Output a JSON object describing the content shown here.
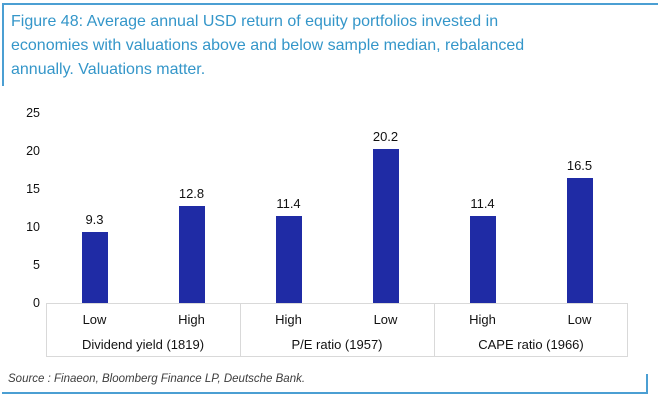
{
  "figure": {
    "title_lines": [
      "Figure 48: Average annual USD return of equity portfolios invested in",
      "economies with valuations above and below sample median, rebalanced",
      "annually. Valuations matter."
    ],
    "source": "Source : Finaeon, Bloomberg Finance LP, Deutsche Bank."
  },
  "colors": {
    "bar": "#1f2ba5",
    "title_blue": "#3496c9",
    "border_blue": "#4b9fd3",
    "grid_gray": "#d9d9d9"
  },
  "chart_data": {
    "type": "bar",
    "title": "Figure 48: Average annual USD return of equity portfolios invested in economies with valuations above and below sample median, rebalanced annually. Valuations matter.",
    "xlabel": "",
    "ylabel": "",
    "ylim": [
      0,
      25
    ],
    "yticks": [
      0,
      5,
      10,
      15,
      20,
      25
    ],
    "grid": false,
    "legend": false,
    "bar_color": "#1f2ba5",
    "groups": [
      {
        "label": "Dividend yield (1819)",
        "bars": [
          {
            "category": "Low",
            "value": 9.3
          },
          {
            "category": "High",
            "value": 12.8
          }
        ]
      },
      {
        "label": "P/E ratio (1957)",
        "bars": [
          {
            "category": "High",
            "value": 11.4
          },
          {
            "category": "Low",
            "value": 20.2
          }
        ]
      },
      {
        "label": "CAPE ratio (1966)",
        "bars": [
          {
            "category": "High",
            "value": 11.4
          },
          {
            "category": "Low",
            "value": 16.5
          }
        ]
      }
    ]
  }
}
